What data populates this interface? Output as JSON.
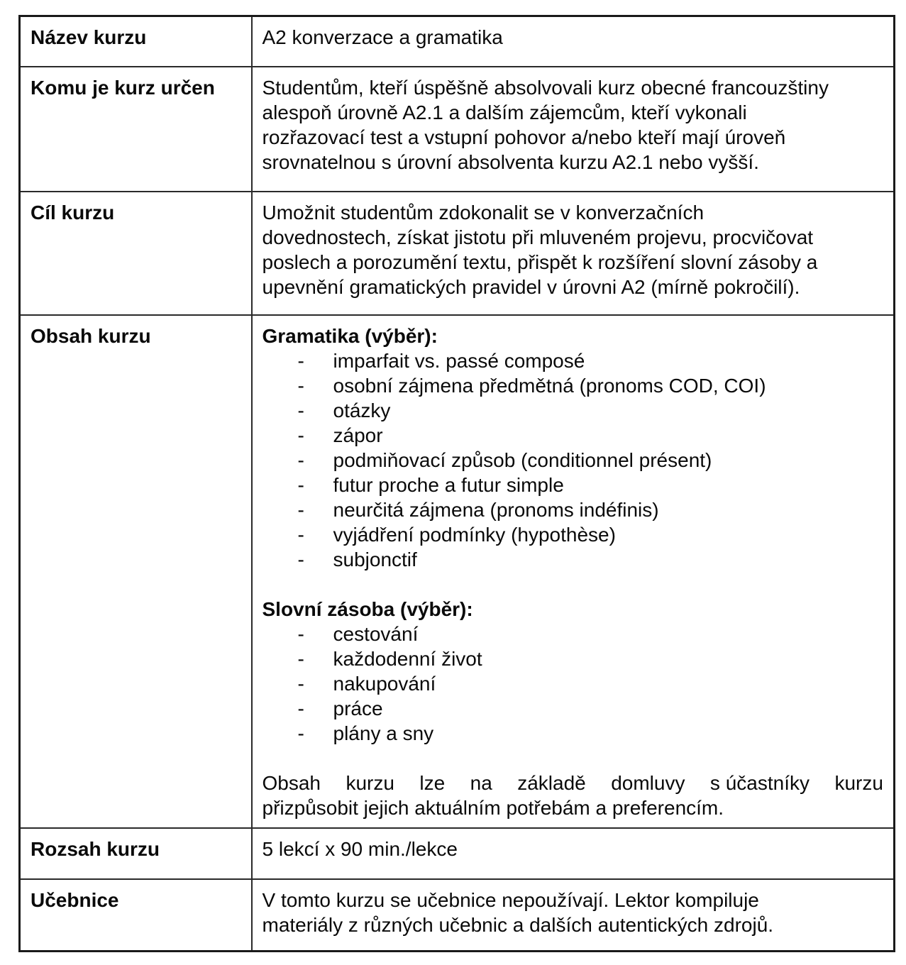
{
  "table": {
    "nazev": {
      "label": "Název kurzu",
      "value": "A2 konverzace a gramatika"
    },
    "komu": {
      "label": "Komu je kurz určen",
      "lines": [
        "Studentům, kteří úspěšně absolvovali kurz obecné francouzštiny",
        "alespoň úrovně A2.1 a dalším zájemcům, kteří vykonali",
        "rozřazovací test a vstupní pohovor a/nebo kteří mají úroveň",
        "srovnatelnou s úrovní absolventa kurzu A2.1 nebo vyšší."
      ]
    },
    "cil": {
      "label": "Cíl kurzu",
      "lines": [
        "Umožnit studentům zdokonalit se v konverzačních",
        "dovednostech, získat jistotu při mluveném projevu, procvičovat",
        "poslech a porozumění textu, přispět k rozšíření slovní zásoby a",
        "upevnění gramatických pravidel v úrovni A2 (mírně pokročilí)."
      ]
    },
    "obsah": {
      "label": "Obsah kurzu",
      "gramatika": {
        "heading": "Gramatika (výběr):",
        "items": [
          "imparfait vs. passé composé",
          "osobní zájmena předmětná (pronoms COD, COI)",
          "otázky",
          "zápor",
          "podmiňovací způsob (conditionnel présent)",
          "futur proche a futur simple",
          "neurčitá zájmena (pronoms indéfinis)",
          "vyjádření podmínky (hypothèse)",
          "subjonctif"
        ]
      },
      "slovni_zasoba": {
        "heading": "Slovní zásoba (výběr):",
        "items": [
          "cestování",
          "každodenní život",
          "nakupování",
          "práce",
          "plány a sny"
        ]
      },
      "note": {
        "line1_words": [
          "Obsah",
          "kurzu",
          "lze",
          "na",
          "základě",
          "domluvy",
          "s účastníky",
          "kurzu"
        ],
        "line2": "přizpůsobit jejich aktuálním potřebám a preferencím."
      }
    },
    "rozsah": {
      "label": "Rozsah kurzu",
      "value": "5 lekcí x 90 min./lekce"
    },
    "ucebnice": {
      "label": "Učebnice",
      "lines": [
        "V tomto kurzu se učebnice nepoužívají. Lektor kompiluje",
        "materiály z různých učebnic a dalších autentických zdrojů."
      ]
    },
    "bullet_char": "-"
  }
}
